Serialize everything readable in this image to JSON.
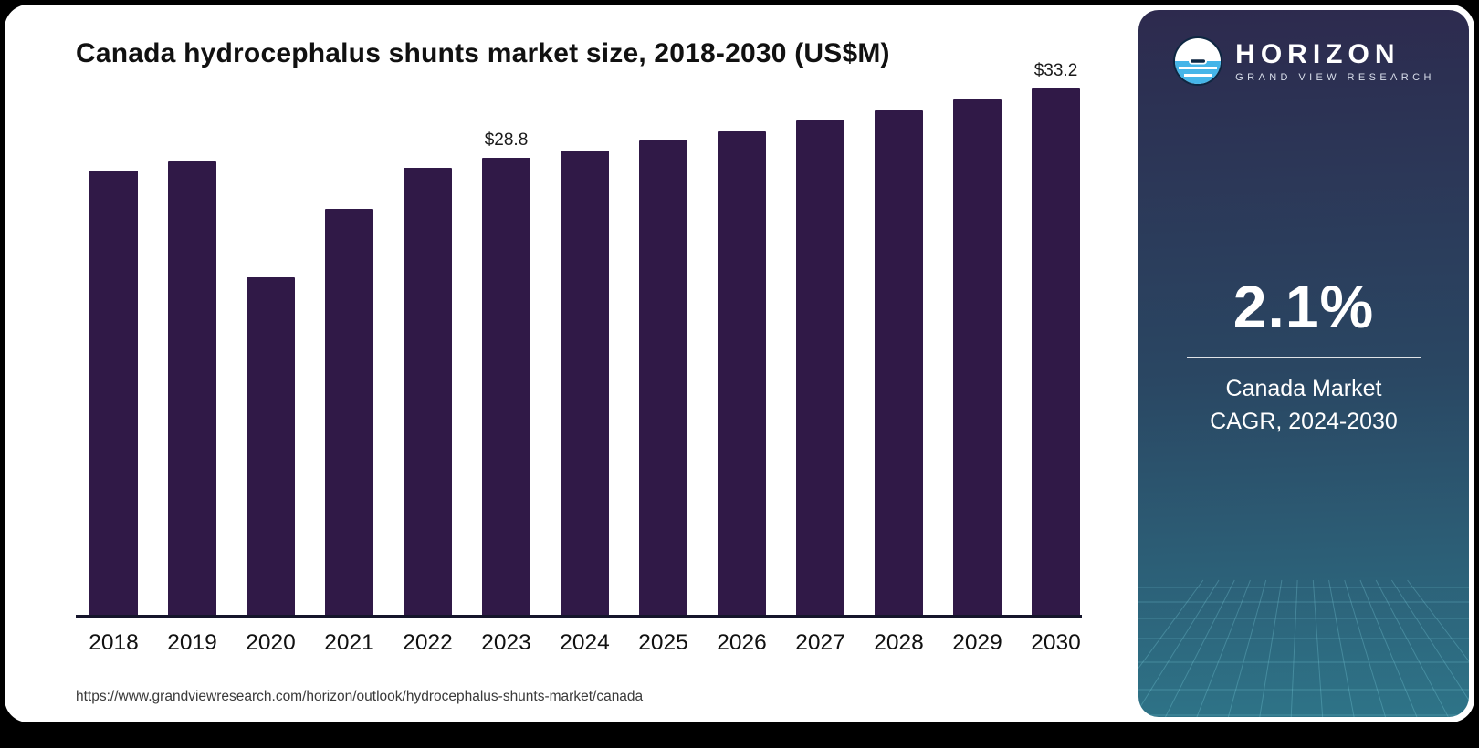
{
  "title": "Canada hydrocephalus shunts market size, 2018-2030 (US$M)",
  "source_url": "https://www.grandviewresearch.com/horizon/outlook/hydrocephalus-shunts-market/canada",
  "chart_data": {
    "type": "bar",
    "title": "Canada hydrocephalus shunts market size, 2018-2030 (US$M)",
    "categories": [
      "2018",
      "2019",
      "2020",
      "2021",
      "2022",
      "2023",
      "2024",
      "2025",
      "2026",
      "2027",
      "2028",
      "2029",
      "2030"
    ],
    "values": [
      28.0,
      28.6,
      21.3,
      25.6,
      28.2,
      28.8,
      29.3,
      29.9,
      30.5,
      31.2,
      31.8,
      32.5,
      33.2
    ],
    "value_labels": {
      "2023": "$28.8",
      "2030": "$33.2"
    },
    "xlabel": "",
    "ylabel": "",
    "ylim": [
      0,
      34
    ],
    "grid": false,
    "legend": "none",
    "bar_color": "#301947"
  },
  "panel": {
    "brand": "HORIZON",
    "brand_sub": "GRAND VIEW RESEARCH",
    "stat_value": "2.1%",
    "stat_label_line1": "Canada Market",
    "stat_label_line2": "CAGR, 2024-2030",
    "colors": {
      "gradient_top": "#2d2a4e",
      "gradient_mid": "#2a4763",
      "gradient_bottom": "#2e7488",
      "accent_blue": "#45b5e8"
    }
  }
}
